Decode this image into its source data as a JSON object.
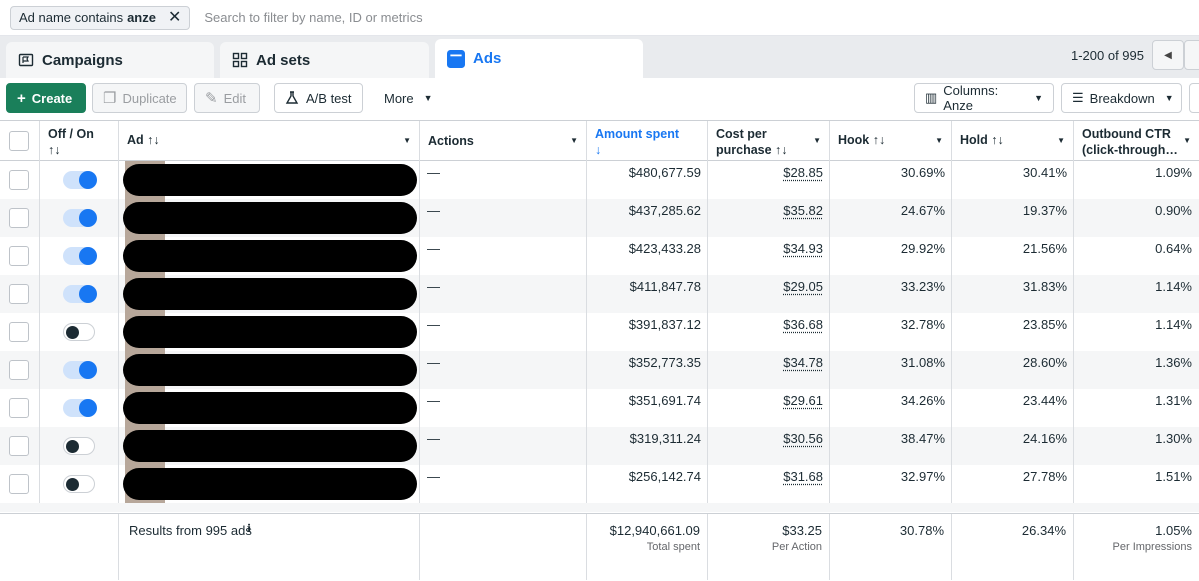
{
  "filter": {
    "chip_prefix": "Ad name contains",
    "chip_value": "anze",
    "search_placeholder": "Search to filter by name, ID or metrics"
  },
  "tabs": [
    {
      "label": "Campaigns"
    },
    {
      "label": "Ad sets"
    },
    {
      "label": "Ads"
    }
  ],
  "pager": {
    "range": "1-200 of 995"
  },
  "toolbar": {
    "create": "Create",
    "duplicate": "Duplicate",
    "edit": "Edit",
    "ab_test": "A/B test",
    "more": "More",
    "columns": "Columns: Anze",
    "breakdown": "Breakdown"
  },
  "headers": {
    "offon": "Off / On",
    "offon_sort": "↑↓",
    "ad": "Ad ↑↓",
    "actions": "Actions",
    "amount": "Amount spent",
    "amount_sort": "↓",
    "cpp_line1": "Cost per",
    "cpp_line2": "purchase ↑↓",
    "hook": "Hook ↑↓",
    "hold": "Hold ↑↓",
    "ctr_line1": "Outbound CTR",
    "ctr_line2": "(click-through…"
  },
  "rows": [
    {
      "on": true,
      "actions": "—",
      "amount": "$480,677.59",
      "cpp": "$28.85",
      "hook": "30.69%",
      "hold": "30.41%",
      "ctr": "1.09%"
    },
    {
      "on": true,
      "actions": "—",
      "amount": "$437,285.62",
      "cpp": "$35.82",
      "hook": "24.67%",
      "hold": "19.37%",
      "ctr": "0.90%"
    },
    {
      "on": true,
      "actions": "—",
      "amount": "$423,433.28",
      "cpp": "$34.93",
      "hook": "29.92%",
      "hold": "21.56%",
      "ctr": "0.64%"
    },
    {
      "on": true,
      "actions": "—",
      "amount": "$411,847.78",
      "cpp": "$29.05",
      "hook": "33.23%",
      "hold": "31.83%",
      "ctr": "1.14%"
    },
    {
      "on": false,
      "actions": "—",
      "amount": "$391,837.12",
      "cpp": "$36.68",
      "hook": "32.78%",
      "hold": "23.85%",
      "ctr": "1.14%"
    },
    {
      "on": true,
      "actions": "—",
      "amount": "$352,773.35",
      "cpp": "$34.78",
      "hook": "31.08%",
      "hold": "28.60%",
      "ctr": "1.36%"
    },
    {
      "on": true,
      "actions": "—",
      "amount": "$351,691.74",
      "cpp": "$29.61",
      "hook": "34.26%",
      "hold": "23.44%",
      "ctr": "1.31%"
    },
    {
      "on": false,
      "actions": "—",
      "amount": "$319,311.24",
      "cpp": "$30.56",
      "hook": "38.47%",
      "hold": "24.16%",
      "ctr": "1.30%"
    },
    {
      "on": false,
      "actions": "—",
      "amount": "$256,142.74",
      "cpp": "$31.68",
      "hook": "32.97%",
      "hold": "27.78%",
      "ctr": "1.51%"
    }
  ],
  "footer": {
    "results": "Results from 995 ads",
    "amount": "$12,940,661.09",
    "amount_sub": "Total spent",
    "cpp": "$33.25",
    "cpp_sub": "Per Action",
    "hook": "30.78%",
    "hold": "26.34%",
    "ctr": "1.05%",
    "ctr_sub": "Per Impressions"
  },
  "colors": {
    "accent": "#1877f2",
    "create": "#1a7f5a"
  }
}
